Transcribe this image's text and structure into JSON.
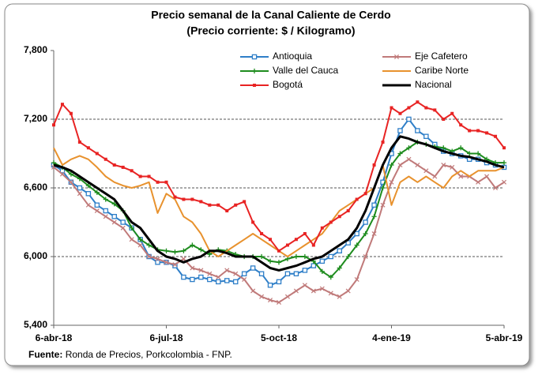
{
  "chart_data": {
    "type": "line",
    "title": "Precio semanal de la Canal Caliente de Cerdo",
    "subtitle": "(Precio corriente: $ / Kilogramo)",
    "source_label": "Fuente:",
    "source_text": "Ronda de Precios, Porkcolombia  - FNP.",
    "categories": [
      "6-abr-18",
      null,
      null,
      null,
      null,
      null,
      null,
      null,
      null,
      null,
      null,
      null,
      null,
      "6-jul-18",
      null,
      null,
      null,
      null,
      null,
      null,
      null,
      null,
      null,
      null,
      null,
      null,
      "5-oct-18",
      null,
      null,
      null,
      null,
      null,
      null,
      null,
      null,
      null,
      null,
      null,
      null,
      "4-ene-19",
      null,
      null,
      null,
      null,
      null,
      null,
      null,
      null,
      null,
      null,
      null,
      null,
      "5-abr-19"
    ],
    "ylim": [
      5400,
      7800
    ],
    "yticks": [
      {
        "value": 5400,
        "label": "5,400"
      },
      {
        "value": 6000,
        "label": "6,000"
      },
      {
        "value": 6600,
        "label": "6,600"
      },
      {
        "value": 7200,
        "label": "7,200"
      },
      {
        "value": 7800,
        "label": "7,800"
      }
    ],
    "grid": true,
    "legend": "top",
    "series": [
      {
        "name": "Antioquia",
        "color": "#2f7fc8",
        "marker": "square-open",
        "values": [
          6800,
          6750,
          6650,
          6600,
          6550,
          6450,
          6400,
          6350,
          6300,
          6250,
          6150,
          6000,
          5950,
          5950,
          5920,
          5820,
          5800,
          5820,
          5800,
          5780,
          5790,
          5780,
          5850,
          5900,
          5850,
          5750,
          5780,
          5850,
          5850,
          5880,
          5920,
          5960,
          6000,
          6050,
          6120,
          6200,
          6300,
          6450,
          6650,
          6900,
          7100,
          7200,
          7100,
          7050,
          6980,
          6920,
          6900,
          6880,
          6850,
          6850,
          6820,
          6800,
          6780
        ]
      },
      {
        "name": "Eje Cafetero",
        "color": "#c07a7a",
        "marker": "x",
        "values": [
          6780,
          6720,
          6650,
          6550,
          6450,
          6400,
          6350,
          6300,
          6250,
          6150,
          6100,
          6000,
          5980,
          5950,
          5930,
          5980,
          5900,
          5880,
          5850,
          5820,
          5880,
          5850,
          5800,
          5700,
          5650,
          5620,
          5600,
          5650,
          5700,
          5750,
          5700,
          5720,
          5680,
          5650,
          5700,
          5800,
          6000,
          6200,
          6450,
          6650,
          6800,
          6850,
          6800,
          6750,
          6700,
          6800,
          6780,
          6700,
          6700,
          6650,
          6700,
          6600,
          6650
        ]
      },
      {
        "name": "Valle del Cauca",
        "color": "#1e8c1e",
        "marker": "plus",
        "values": [
          6820,
          6780,
          6720,
          6680,
          6620,
          6560,
          6500,
          6460,
          6400,
          6250,
          6150,
          6100,
          6060,
          6050,
          6040,
          6050,
          6100,
          6060,
          6020,
          6060,
          6050,
          6020,
          6000,
          6000,
          6000,
          5960,
          5950,
          5980,
          6000,
          6000,
          5960,
          5870,
          5820,
          5900,
          6000,
          6100,
          6200,
          6350,
          6600,
          6800,
          6900,
          6950,
          7000,
          6980,
          6960,
          6950,
          6920,
          6950,
          6900,
          6900,
          6850,
          6820,
          6820
        ]
      },
      {
        "name": "Caribe Norte",
        "color": "#e8922e",
        "marker": "none",
        "values": [
          6950,
          6800,
          6850,
          6880,
          6850,
          6780,
          6700,
          6650,
          6620,
          6600,
          6620,
          6650,
          6380,
          6550,
          6500,
          6350,
          6300,
          6200,
          6050,
          6000,
          6050,
          6100,
          6150,
          6200,
          6150,
          6100,
          6050,
          6000,
          6050,
          6100,
          6150,
          6200,
          6300,
          6400,
          6450,
          6500,
          6550,
          6600,
          6800,
          6450,
          6650,
          6700,
          6650,
          6700,
          6650,
          6600,
          6700,
          6750,
          6700,
          6750,
          6750,
          6750,
          6780
        ]
      },
      {
        "name": "Bogotá",
        "color": "#e82323",
        "marker": "square",
        "values": [
          7150,
          7330,
          7250,
          7000,
          6950,
          6900,
          6850,
          6800,
          6780,
          6750,
          6700,
          6700,
          6650,
          6650,
          6520,
          6500,
          6500,
          6480,
          6450,
          6450,
          6400,
          6450,
          6480,
          6300,
          6200,
          6150,
          6050,
          6100,
          6150,
          6200,
          6100,
          6250,
          6300,
          6350,
          6400,
          6500,
          6550,
          6800,
          7000,
          7300,
          7250,
          7300,
          7350,
          7300,
          7280,
          7200,
          7250,
          7150,
          7100,
          7100,
          7080,
          7050,
          6950
        ]
      },
      {
        "name": "Nacional",
        "color": "#000000",
        "marker": "none",
        "values": [
          6800,
          6780,
          6750,
          6700,
          6650,
          6600,
          6550,
          6500,
          6400,
          6300,
          6250,
          6150,
          6050,
          6000,
          5980,
          5950,
          5980,
          6000,
          6050,
          6050,
          6030,
          6000,
          6000,
          6000,
          5950,
          5900,
          5880,
          5900,
          5920,
          5950,
          5980,
          6000,
          6050,
          6100,
          6150,
          6250,
          6400,
          6600,
          6800,
          6950,
          7050,
          7030,
          7000,
          6980,
          6950,
          6920,
          6900,
          6880,
          6870,
          6850,
          6830,
          6800,
          6780
        ]
      }
    ]
  }
}
